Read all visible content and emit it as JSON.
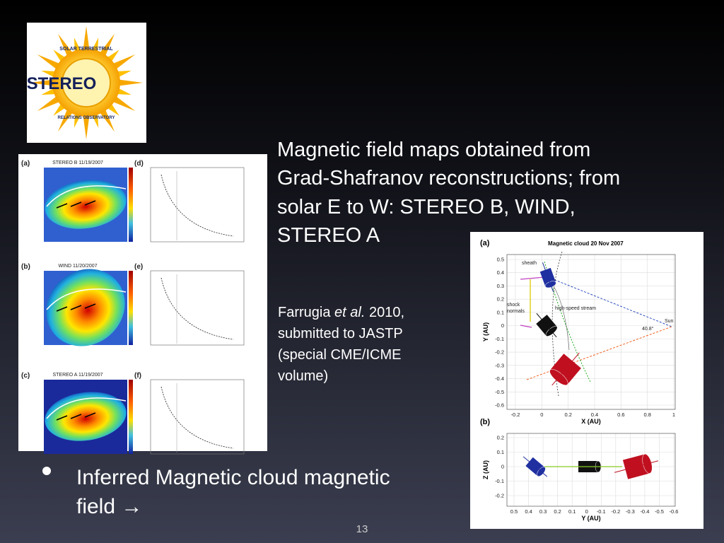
{
  "logo": {
    "text": "STEREO",
    "ring_top": "SOLAR TERRESTRIAL",
    "ring_bottom": "RELATIONS OBSERVATORY"
  },
  "caption": [
    "Magnetic field maps obtained from",
    "Grad-Shafranov reconstructions; from",
    "solar E to W: STEREO B, WIND,",
    "STEREO A"
  ],
  "citation": {
    "author": "Farrugia",
    "italic": "et al.",
    "year": "2010,",
    "lines": [
      "submitted to JASTP",
      "(special CME/ICME",
      "volume)"
    ]
  },
  "bullet": [
    "Inferred Magnetic cloud magnetic",
    "field →"
  ],
  "page_number": "13",
  "left_figure": {
    "panels": [
      {
        "map_letter": "(a)",
        "plot_letter": "(d)",
        "title": "STEREO B 11/19/2007"
      },
      {
        "map_letter": "(b)",
        "plot_letter": "(e)",
        "title": "WIND 11/20/2007"
      },
      {
        "map_letter": "(c)",
        "plot_letter": "(f)",
        "title": "STEREO A 11/19/2007"
      }
    ]
  },
  "right_figure": {
    "plot_a": {
      "letter": "(a)",
      "title": "Magnetic cloud  20 Nov 2007",
      "xlabel": "X (AU)",
      "ylabel": "Y (AU)",
      "xticks": [
        -0.2,
        0,
        0.2,
        0.4,
        0.6,
        0.8,
        1
      ],
      "yticks": [
        0.5,
        0.4,
        0.3,
        0.2,
        0.1,
        0,
        -0.1,
        -0.2,
        -0.3,
        -0.4,
        -0.5,
        -0.6
      ],
      "sheath": "sheath",
      "shock_normals": [
        "shock",
        "normals"
      ],
      "stream": "high-speed stream",
      "sun": "Sun",
      "angle": "40.8°"
    },
    "plot_b": {
      "letter": "(b)",
      "xlabel": "Y (AU)",
      "ylabel": "Z (AU)",
      "xticks": [
        0.5,
        0.4,
        0.3,
        0.2,
        0.1,
        0,
        -0.1,
        -0.2,
        -0.3,
        -0.4,
        -0.5,
        -0.6
      ],
      "yticks": [
        0.2,
        0.1,
        0,
        -0.1,
        -0.2
      ]
    }
  }
}
